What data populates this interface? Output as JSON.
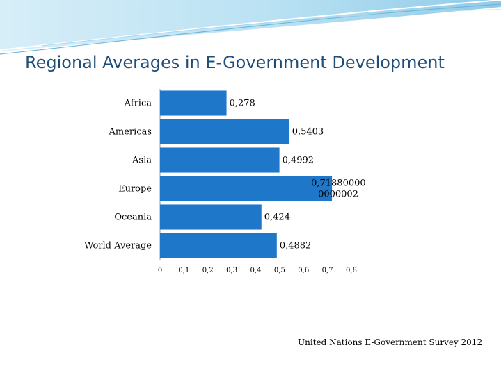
{
  "title": "Regional Averages in E-Government Development",
  "source": "United Nations E-Government Survey 2012",
  "colors": {
    "bar": "#1f77c9",
    "title": "#1f4e79",
    "axis": "#999999"
  },
  "chart_data": {
    "type": "bar",
    "orientation": "horizontal",
    "title": "Regional Averages in E-Government Development",
    "categories": [
      "Africa",
      "Americas",
      "Asia",
      "Europe",
      "Oceania",
      "World Average"
    ],
    "values": [
      0.278,
      0.5403,
      0.4992,
      0.7188,
      0.424,
      0.4882
    ],
    "value_labels": [
      "0,278",
      "0,5403",
      "0,4992",
      "0,71880000 0000002",
      "0,424",
      "0,4882"
    ],
    "xlim": [
      0,
      0.8
    ],
    "xticks": [
      0,
      0.1,
      0.2,
      0.3,
      0.4,
      0.5,
      0.6,
      0.7,
      0.8
    ],
    "xtick_labels": [
      "0",
      "0,1",
      "0,2",
      "0,3",
      "0,4",
      "0,5",
      "0,6",
      "0,7",
      "0,8"
    ],
    "xlabel": "",
    "ylabel": "",
    "grid": false,
    "legend": "none"
  }
}
